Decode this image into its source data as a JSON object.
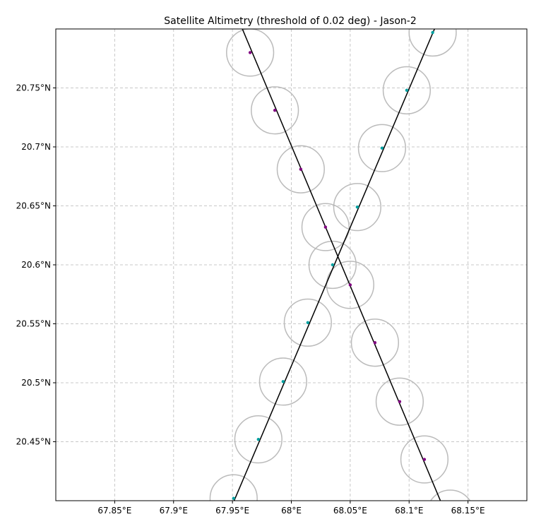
{
  "chart_data": {
    "type": "scatter",
    "title": "Satellite Altimetry (threshold of 0.02 deg) - Jason-2",
    "xlabel": "",
    "ylabel": "",
    "xlim": [
      67.8,
      68.2
    ],
    "ylim": [
      20.4,
      20.8
    ],
    "grid": true,
    "grid_style": "dashed",
    "x_ticks": [
      67.85,
      67.9,
      67.95,
      68.0,
      68.05,
      68.1,
      68.15
    ],
    "x_tick_labels": [
      "67.85°E",
      "67.9°E",
      "67.95°E",
      "68°E",
      "68.05°E",
      "68.1°E",
      "68.15°E"
    ],
    "y_ticks": [
      20.45,
      20.5,
      20.55,
      20.6,
      20.65,
      20.7,
      20.75
    ],
    "y_tick_labels": [
      "20.45°N",
      "20.5°N",
      "20.55°N",
      "20.6°N",
      "20.65°N",
      "20.7°N",
      "20.75°N"
    ],
    "threshold_radius_deg": 0.02,
    "series": [
      {
        "color": "#800080",
        "track": [
          [
            67.958,
            20.801
          ],
          [
            68.127,
            20.399
          ]
        ],
        "points": [
          [
            67.965,
            20.78
          ],
          [
            67.986,
            20.731
          ],
          [
            68.008,
            20.681
          ],
          [
            68.029,
            20.632
          ],
          [
            68.05,
            20.583
          ],
          [
            68.071,
            20.534
          ],
          [
            68.092,
            20.484
          ],
          [
            68.113,
            20.435
          ]
        ]
      },
      {
        "color": "#00a0a0",
        "track": [
          [
            67.951,
            20.399
          ],
          [
            68.122,
            20.801
          ]
        ],
        "points": [
          [
            67.951,
            20.402
          ],
          [
            67.972,
            20.452
          ],
          [
            67.993,
            20.501
          ],
          [
            68.014,
            20.551
          ],
          [
            68.035,
            20.6
          ],
          [
            68.056,
            20.649
          ],
          [
            68.077,
            20.699
          ],
          [
            68.098,
            20.748
          ],
          [
            68.12,
            20.797
          ]
        ]
      }
    ],
    "extra_circles": [
      [
        68.135,
        20.389
      ]
    ],
    "colors": {
      "track": "#000000",
      "circle": "#bbbbbb",
      "grid": "#c8c8c8",
      "axes": "#000000"
    }
  }
}
